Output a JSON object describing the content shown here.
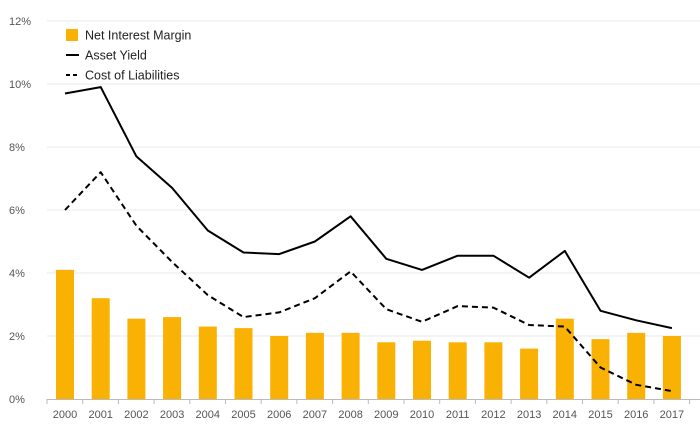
{
  "chart_data": {
    "type": "bar",
    "categories": [
      "2000",
      "2001",
      "2002",
      "2003",
      "2004",
      "2005",
      "2006",
      "2007",
      "2008",
      "2009",
      "2010",
      "2011",
      "2012",
      "2013",
      "2014",
      "2015",
      "2016",
      "2017"
    ],
    "series": [
      {
        "name": "Net Interest Margin",
        "type": "bar",
        "color": "#f9b104",
        "values": [
          4.1,
          3.2,
          2.55,
          2.6,
          2.3,
          2.25,
          2.0,
          2.1,
          2.1,
          1.8,
          1.85,
          1.8,
          1.8,
          1.6,
          2.55,
          1.9,
          2.1,
          2.0
        ]
      },
      {
        "name": "Asset Yield",
        "type": "line",
        "style": "solid",
        "color": "#000000",
        "values": [
          9.7,
          9.9,
          7.7,
          6.7,
          5.35,
          4.65,
          4.6,
          5.0,
          5.8,
          4.45,
          4.1,
          4.55,
          4.55,
          3.85,
          4.7,
          2.8,
          2.5,
          2.25
        ]
      },
      {
        "name": "Cost of Liabilities",
        "type": "line",
        "style": "dashed",
        "color": "#000000",
        "values": [
          6.0,
          7.2,
          5.5,
          4.35,
          3.3,
          2.6,
          2.75,
          3.2,
          4.05,
          2.85,
          2.45,
          2.95,
          2.9,
          2.35,
          2.3,
          1.0,
          0.45,
          0.25
        ]
      }
    ],
    "y_ticks": [
      "0%",
      "2%",
      "4%",
      "6%",
      "8%",
      "10%",
      "12%"
    ],
    "ylim": [
      0,
      12
    ],
    "grid": true,
    "legend_position": "top-left"
  }
}
